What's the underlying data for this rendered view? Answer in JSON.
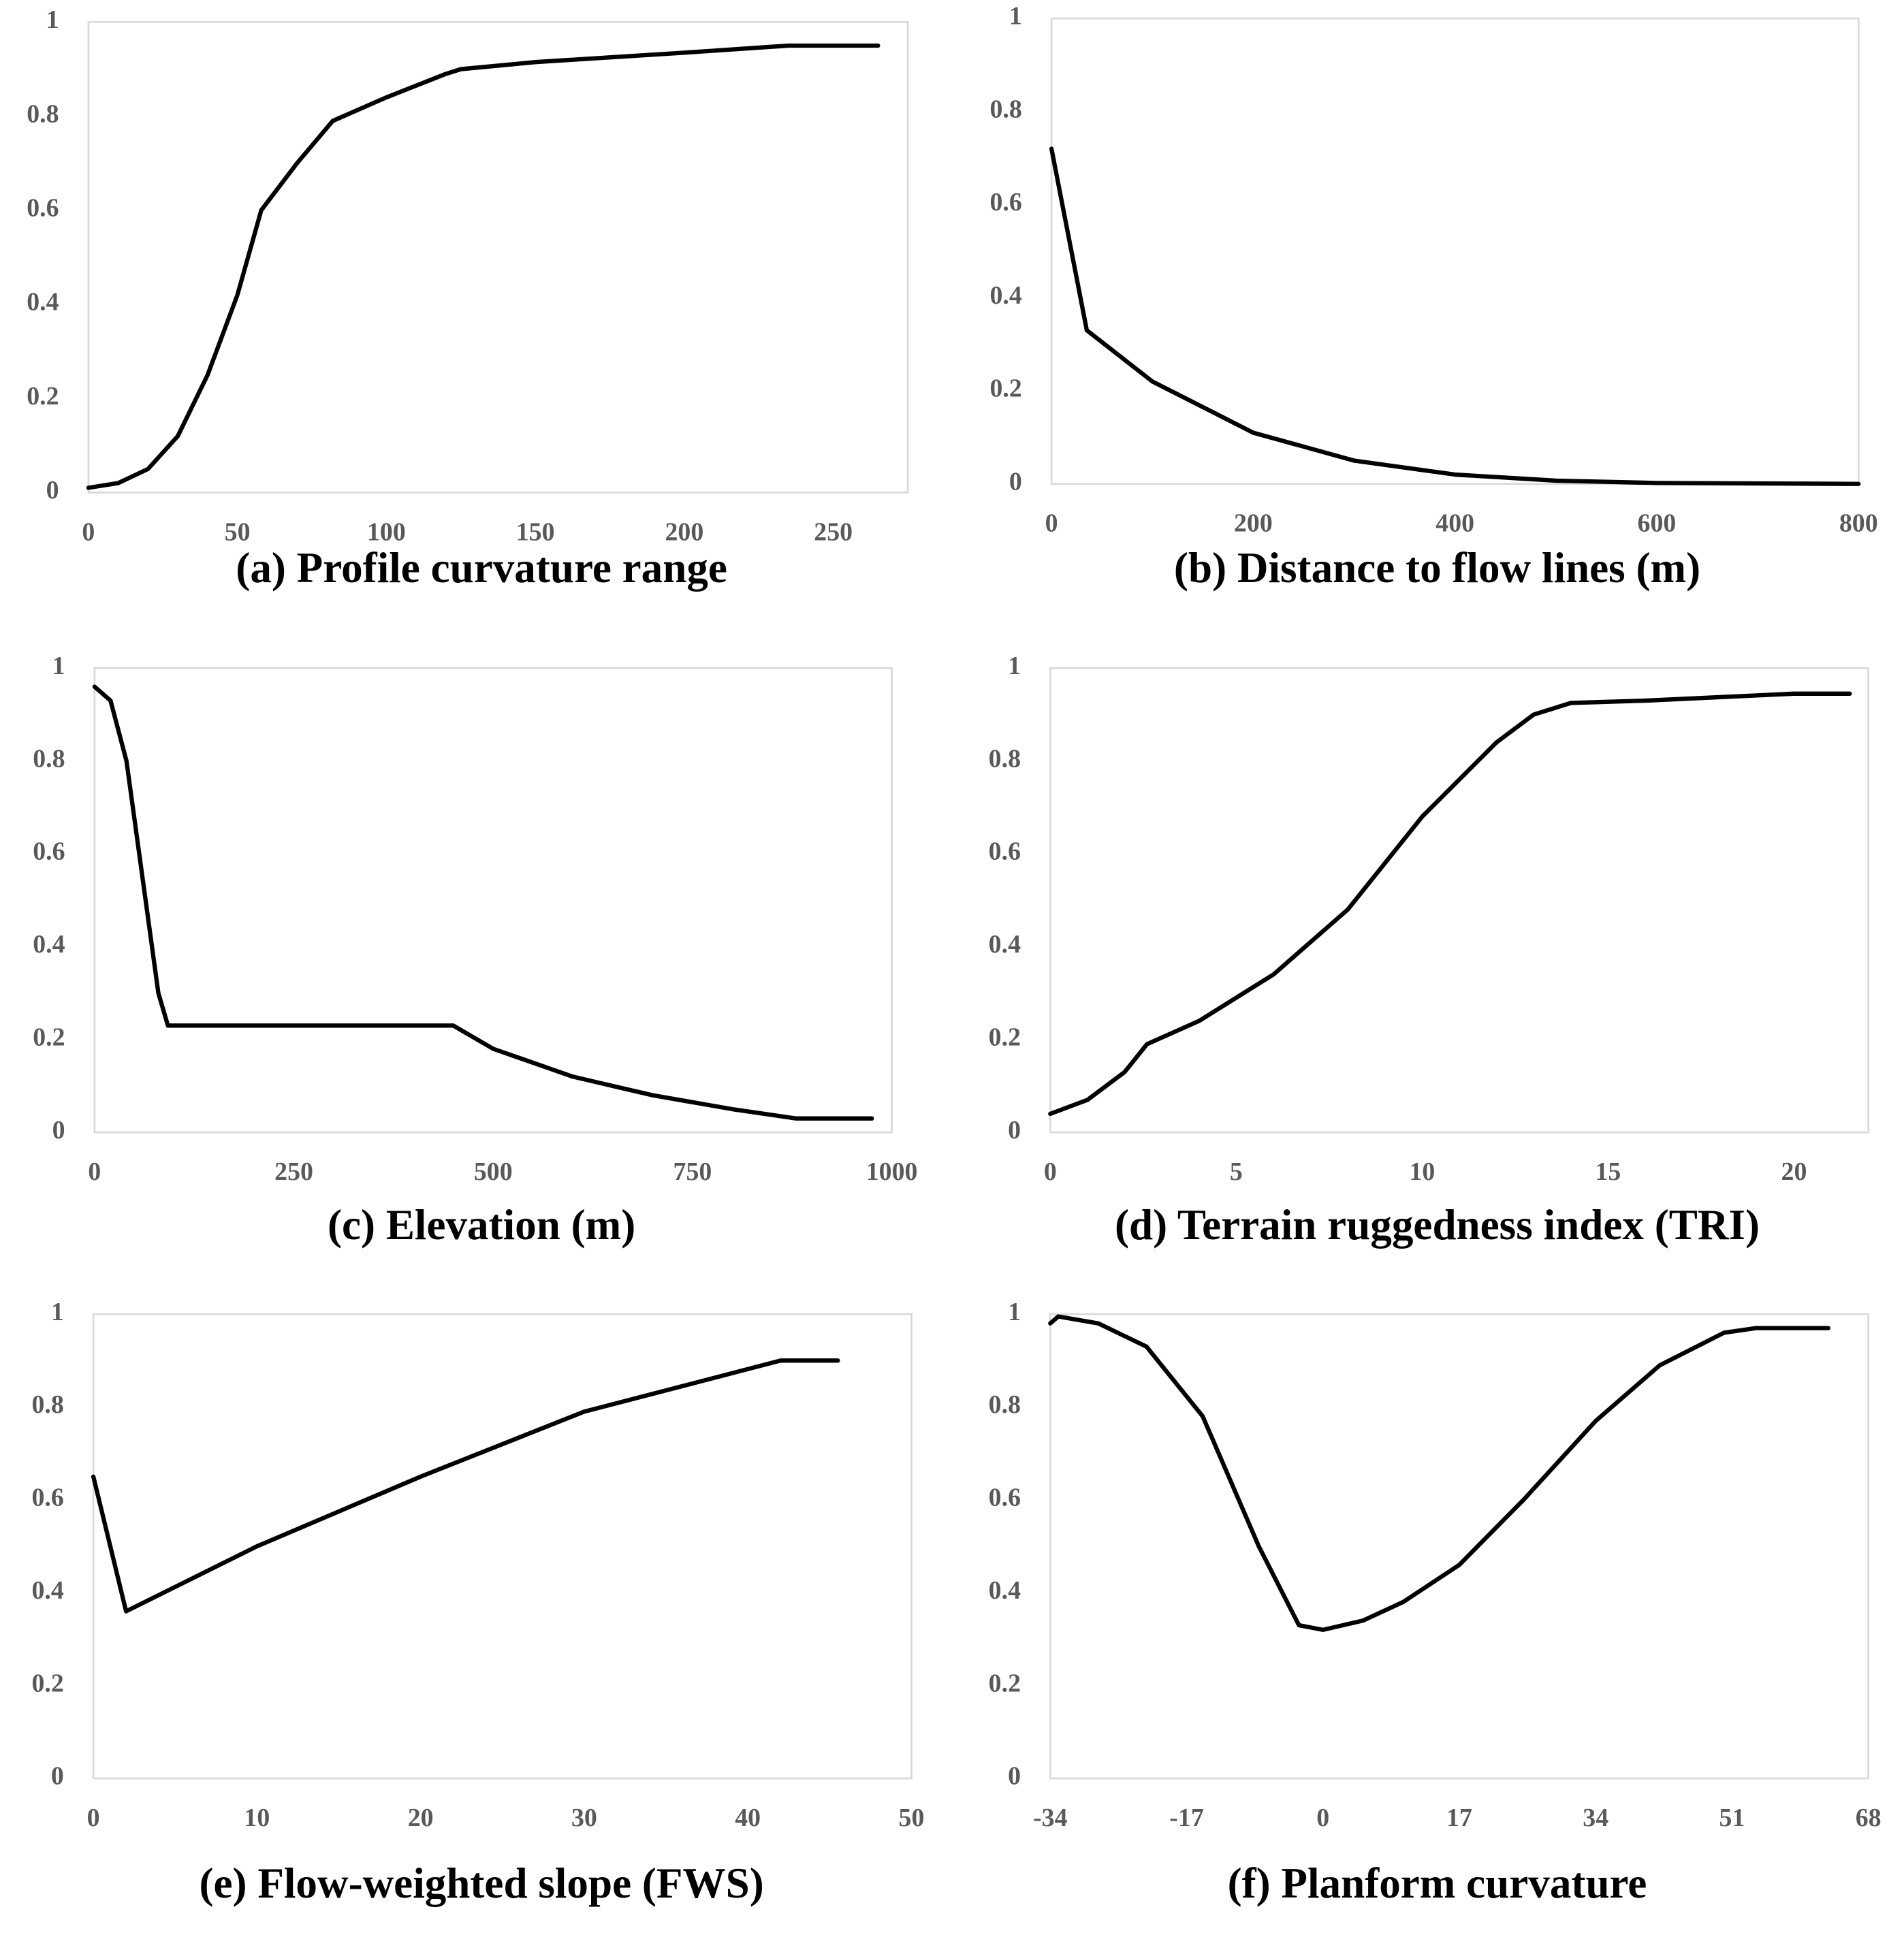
{
  "chart_data": [
    {
      "type": "line",
      "title": "(a) Profile curvature range",
      "x": [
        0,
        10,
        20,
        30,
        40,
        50,
        58,
        70,
        82,
        100,
        120,
        125,
        150,
        200,
        235,
        265
      ],
      "values": [
        0.01,
        0.02,
        0.05,
        0.12,
        0.25,
        0.42,
        0.6,
        0.7,
        0.79,
        0.84,
        0.89,
        0.9,
        0.915,
        0.935,
        0.95,
        0.95
      ],
      "color": "#000000",
      "xlim": [
        0,
        275
      ],
      "xticks": [
        0,
        50,
        100,
        150,
        200,
        250
      ],
      "ylim": [
        0,
        1
      ],
      "yticks": [
        0,
        0.2,
        0.4,
        0.6,
        0.8,
        1
      ]
    },
    {
      "type": "line",
      "title": "(b) Distance to flow lines (m)",
      "x": [
        0,
        35,
        100,
        200,
        300,
        400,
        500,
        600,
        800
      ],
      "values": [
        0.72,
        0.33,
        0.22,
        0.11,
        0.05,
        0.02,
        0.007,
        0.002,
        0
      ],
      "color": "#000000",
      "xlim": [
        0,
        800
      ],
      "xticks": [
        0,
        200,
        400,
        600,
        800
      ],
      "ylim": [
        0,
        1
      ],
      "yticks": [
        0,
        0.2,
        0.4,
        0.6,
        0.8,
        1
      ]
    },
    {
      "type": "line",
      "title": "(c) Elevation (m)",
      "x": [
        0,
        20,
        40,
        60,
        80,
        92,
        450,
        500,
        600,
        700,
        800,
        880,
        975
      ],
      "values": [
        0.96,
        0.93,
        0.8,
        0.55,
        0.3,
        0.23,
        0.23,
        0.18,
        0.12,
        0.08,
        0.05,
        0.03,
        0.03
      ],
      "color": "#000000",
      "xlim": [
        0,
        1000
      ],
      "xticks": [
        0,
        250,
        500,
        750,
        1000
      ],
      "ylim": [
        0,
        1
      ],
      "yticks": [
        0,
        0.2,
        0.4,
        0.6,
        0.8,
        1
      ]
    },
    {
      "type": "line",
      "title": "(d) Terrain ruggedness index (TRI)",
      "x": [
        0,
        1,
        2,
        2.6,
        4,
        6,
        8,
        10,
        12,
        13,
        14,
        16,
        20,
        21.5
      ],
      "values": [
        0.04,
        0.07,
        0.13,
        0.19,
        0.24,
        0.34,
        0.48,
        0.68,
        0.84,
        0.9,
        0.925,
        0.93,
        0.945,
        0.945
      ],
      "color": "#000000",
      "xlim": [
        0,
        22
      ],
      "xticks": [
        0,
        5,
        10,
        15,
        20
      ],
      "ylim": [
        0,
        1
      ],
      "yticks": [
        0,
        0.2,
        0.4,
        0.6,
        0.8,
        1
      ]
    },
    {
      "type": "line",
      "title": "(e) Flow-weighted slope (FWS)",
      "x": [
        0,
        2,
        10,
        20,
        30,
        42,
        45.5
      ],
      "values": [
        0.65,
        0.36,
        0.5,
        0.65,
        0.79,
        0.9,
        0.9
      ],
      "color": "#000000",
      "xlim": [
        0,
        50
      ],
      "xticks": [
        0,
        10,
        20,
        30,
        40,
        50
      ],
      "ylim": [
        0,
        1
      ],
      "yticks": [
        0,
        0.2,
        0.4,
        0.6,
        0.8,
        1
      ]
    },
    {
      "type": "line",
      "title": "(f) Planform curvature",
      "x": [
        -34,
        -33,
        -28,
        -22,
        -15,
        -8,
        -3,
        0,
        5,
        10,
        17,
        25,
        34,
        42,
        50,
        54,
        63
      ],
      "values": [
        0.98,
        0.995,
        0.98,
        0.93,
        0.78,
        0.5,
        0.33,
        0.32,
        0.34,
        0.38,
        0.46,
        0.6,
        0.77,
        0.89,
        0.96,
        0.97,
        0.97
      ],
      "color": "#000000",
      "xlim": [
        -34,
        68
      ],
      "xticks": [
        -34,
        -17,
        0,
        17,
        34,
        51,
        68
      ],
      "ylim": [
        0,
        1
      ],
      "yticks": [
        0,
        0.2,
        0.4,
        0.6,
        0.8,
        1
      ]
    }
  ]
}
